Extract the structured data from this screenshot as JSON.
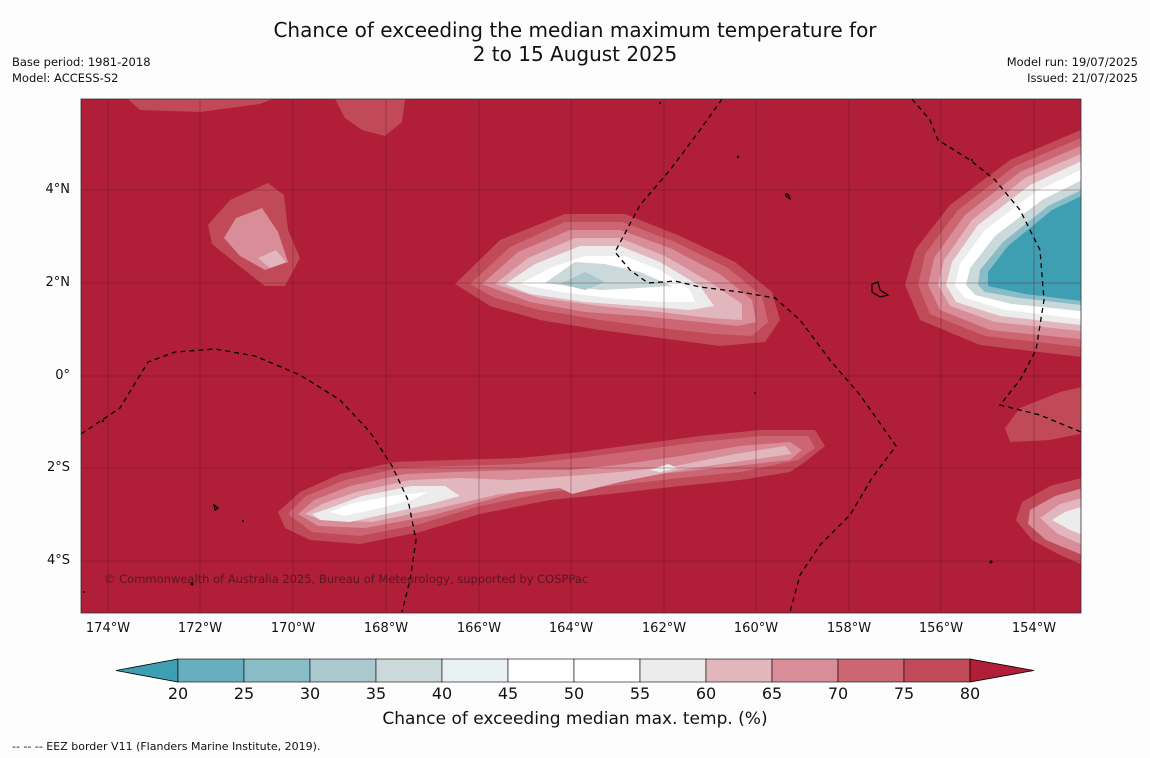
{
  "title_line1": "Chance of exceeding the median maximum temperature for",
  "title_line2": "2 to 15 August 2025",
  "meta_left": {
    "base_period": "Base period: 1981-2018",
    "model": "Model: ACCESS-S2"
  },
  "meta_right": {
    "model_run": "Model run: 19/07/2025",
    "issued": "Issued: 21/07/2025"
  },
  "lat_labels": [
    "4°N",
    "2°N",
    "0°",
    "2°S",
    "4°S"
  ],
  "lon_labels": [
    "174°W",
    "172°W",
    "170°W",
    "168°W",
    "166°W",
    "164°W",
    "162°W",
    "160°W",
    "158°W",
    "156°W",
    "154°W"
  ],
  "copyright": "© Commonwealth of Australia 2025, Bureau of Meteorology, supported by COSPPac",
  "colorbar": {
    "ticks": [
      "20",
      "25",
      "30",
      "35",
      "40",
      "45",
      "50",
      "55",
      "60",
      "65",
      "70",
      "75",
      "80"
    ],
    "colors": [
      "#3f9fb2",
      "#67aebe",
      "#88bcc7",
      "#a9c9cf",
      "#cbd9db",
      "#eaf1f2",
      "#ffffff",
      "#ffffff",
      "#ececec",
      "#e2b6bd",
      "#d88d98",
      "#cc6673",
      "#c14a58",
      "#b01e38"
    ],
    "label": "Chance of exceeding median max. temp. (%)"
  },
  "footnote": "-- -- -- EEZ border V11 (Flanders Marine Institute, 2019).",
  "colors": {
    "background_field": "#b01e38",
    "cool_anomaly": "#3f9fb2",
    "eez_border": "#000000"
  }
}
